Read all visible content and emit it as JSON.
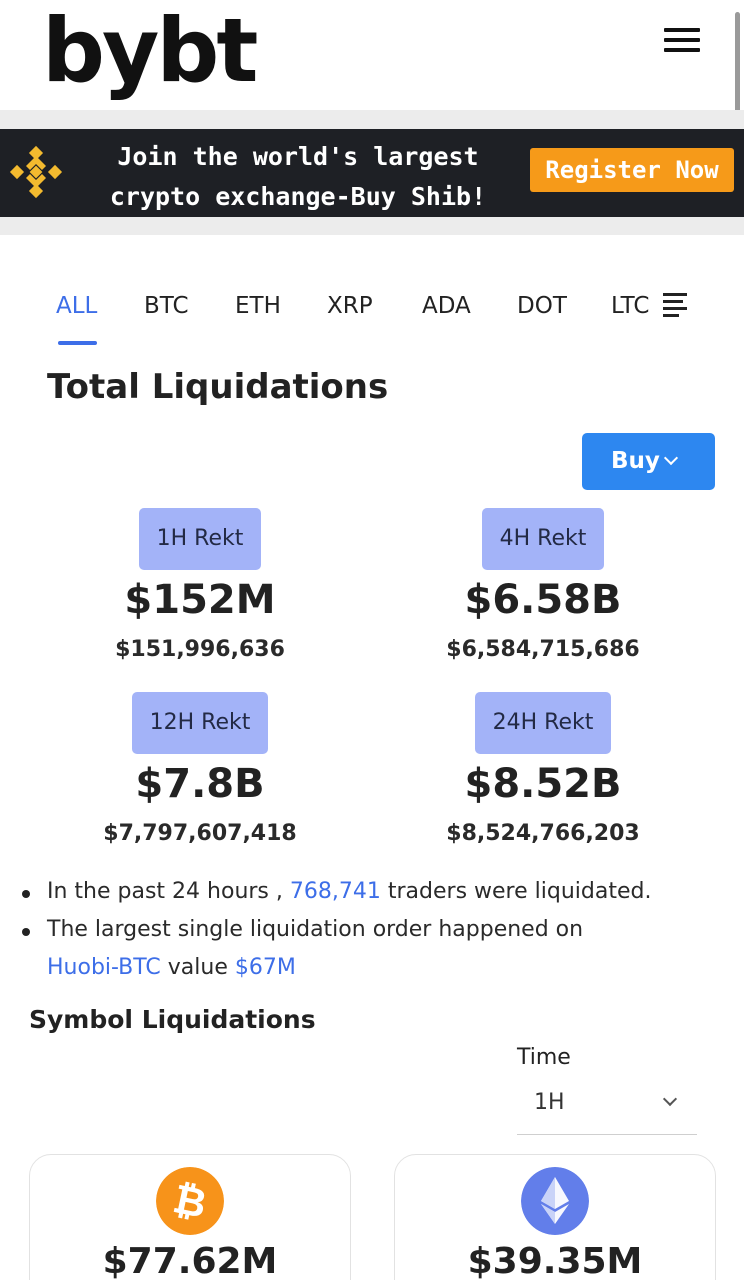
{
  "header": {
    "logo_text": "bybt",
    "menu_icon": "hamburger-menu-icon"
  },
  "banner": {
    "logo_icon": "binance-logo-icon",
    "text_line1": "Join the world's largest",
    "text_line2": "crypto exchange-Buy Shib!",
    "register_label": "Register Now",
    "accent_color": "#f69a19"
  },
  "tabs": [
    {
      "label": "ALL",
      "active": true
    },
    {
      "label": "BTC"
    },
    {
      "label": "ETH"
    },
    {
      "label": "XRP"
    },
    {
      "label": "ADA"
    },
    {
      "label": "DOT"
    },
    {
      "label": "LTC"
    }
  ],
  "total": {
    "title": "Total Liquidations",
    "buy_label": "Buy",
    "stats": [
      {
        "badge": "1H Rekt",
        "value": "$152M",
        "exact": "$151,996,636"
      },
      {
        "badge": "4H Rekt",
        "value": "$6.58B",
        "exact": "$6,584,715,686"
      },
      {
        "badge": "12H Rekt",
        "value": "$7.8B",
        "exact": "$7,797,607,418"
      },
      {
        "badge": "24H Rekt",
        "value": "$8.52B",
        "exact": "$8,524,766,203"
      }
    ]
  },
  "summary": {
    "line1_prefix": "In the past 24 hours ,",
    "traders_count": "768,741",
    "line1_suffix": "traders were liquidated.",
    "line2_prefix": "The largest single liquidation order happened on",
    "exchange_link": "Huobi-BTC",
    "value_word": "value",
    "value_amount": "$67M"
  },
  "symbol": {
    "title": "Symbol Liquidations",
    "time_label": "Time",
    "time_value": "1H",
    "cards": [
      {
        "icon": "bitcoin-icon",
        "amount": "$77.62M",
        "color": "#f7931a"
      },
      {
        "icon": "ethereum-icon",
        "amount": "$39.35M",
        "color": "#627eea"
      }
    ]
  }
}
